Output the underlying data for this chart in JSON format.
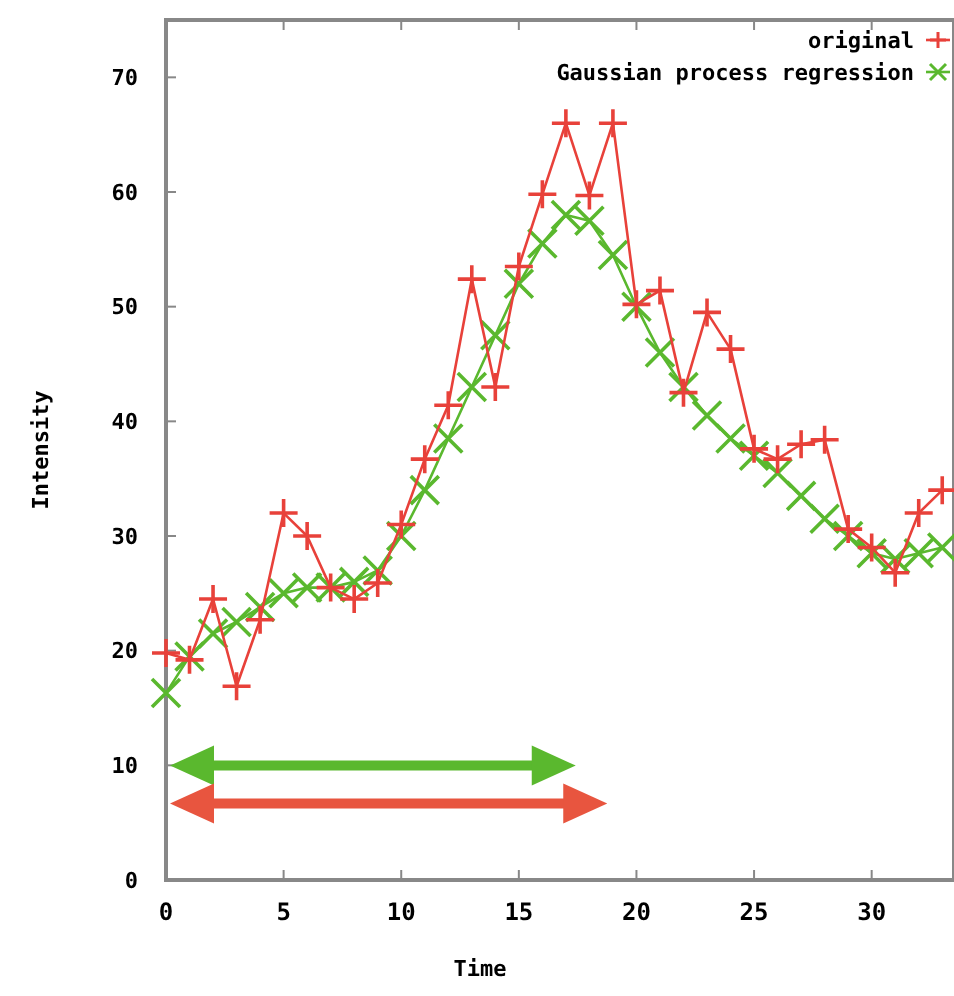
{
  "chart_data": {
    "type": "line",
    "xlabel": "Time",
    "ylabel": "Intensity",
    "x": [
      0,
      1,
      2,
      3,
      4,
      5,
      6,
      7,
      8,
      9,
      10,
      11,
      12,
      13,
      14,
      15,
      16,
      17,
      18,
      19,
      20,
      21,
      22,
      23,
      24,
      25,
      26,
      27,
      28,
      29,
      30,
      31,
      32,
      33
    ],
    "series": [
      {
        "name": "original",
        "color": "#e8413a",
        "marker": "plus",
        "values": [
          19.8,
          19.2,
          24.5,
          16.9,
          22.7,
          32,
          30,
          25.5,
          24.5,
          25.9,
          31,
          36.7,
          41.4,
          52.4,
          43,
          53.5,
          59.8,
          66,
          59.7,
          66,
          50.2,
          51.4,
          42.5,
          49.5,
          46.3,
          37.6,
          36.7,
          38,
          38.4,
          30.6,
          29,
          26.8,
          32,
          34
        ]
      },
      {
        "name": "Gaussian process regression",
        "color": "#5ab82e",
        "marker": "cross",
        "values": [
          16.3,
          19.5,
          21.5,
          22.5,
          23.8,
          25,
          25.5,
          25.5,
          26,
          27,
          30,
          34,
          38.5,
          43,
          47.5,
          52,
          55.5,
          58,
          57.5,
          54.5,
          50,
          46,
          43,
          40.5,
          38.5,
          37,
          35.5,
          33.5,
          31.5,
          30,
          28.5,
          28,
          28.5,
          29
        ]
      }
    ],
    "xlim": [
      0,
      33.5
    ],
    "ylim": [
      0,
      75
    ],
    "xticks": [
      0,
      5,
      10,
      15,
      20,
      25,
      30
    ],
    "yticks": [
      0,
      10,
      20,
      30,
      40,
      50,
      60,
      70
    ],
    "legend": "top right",
    "grid": false
  }
}
